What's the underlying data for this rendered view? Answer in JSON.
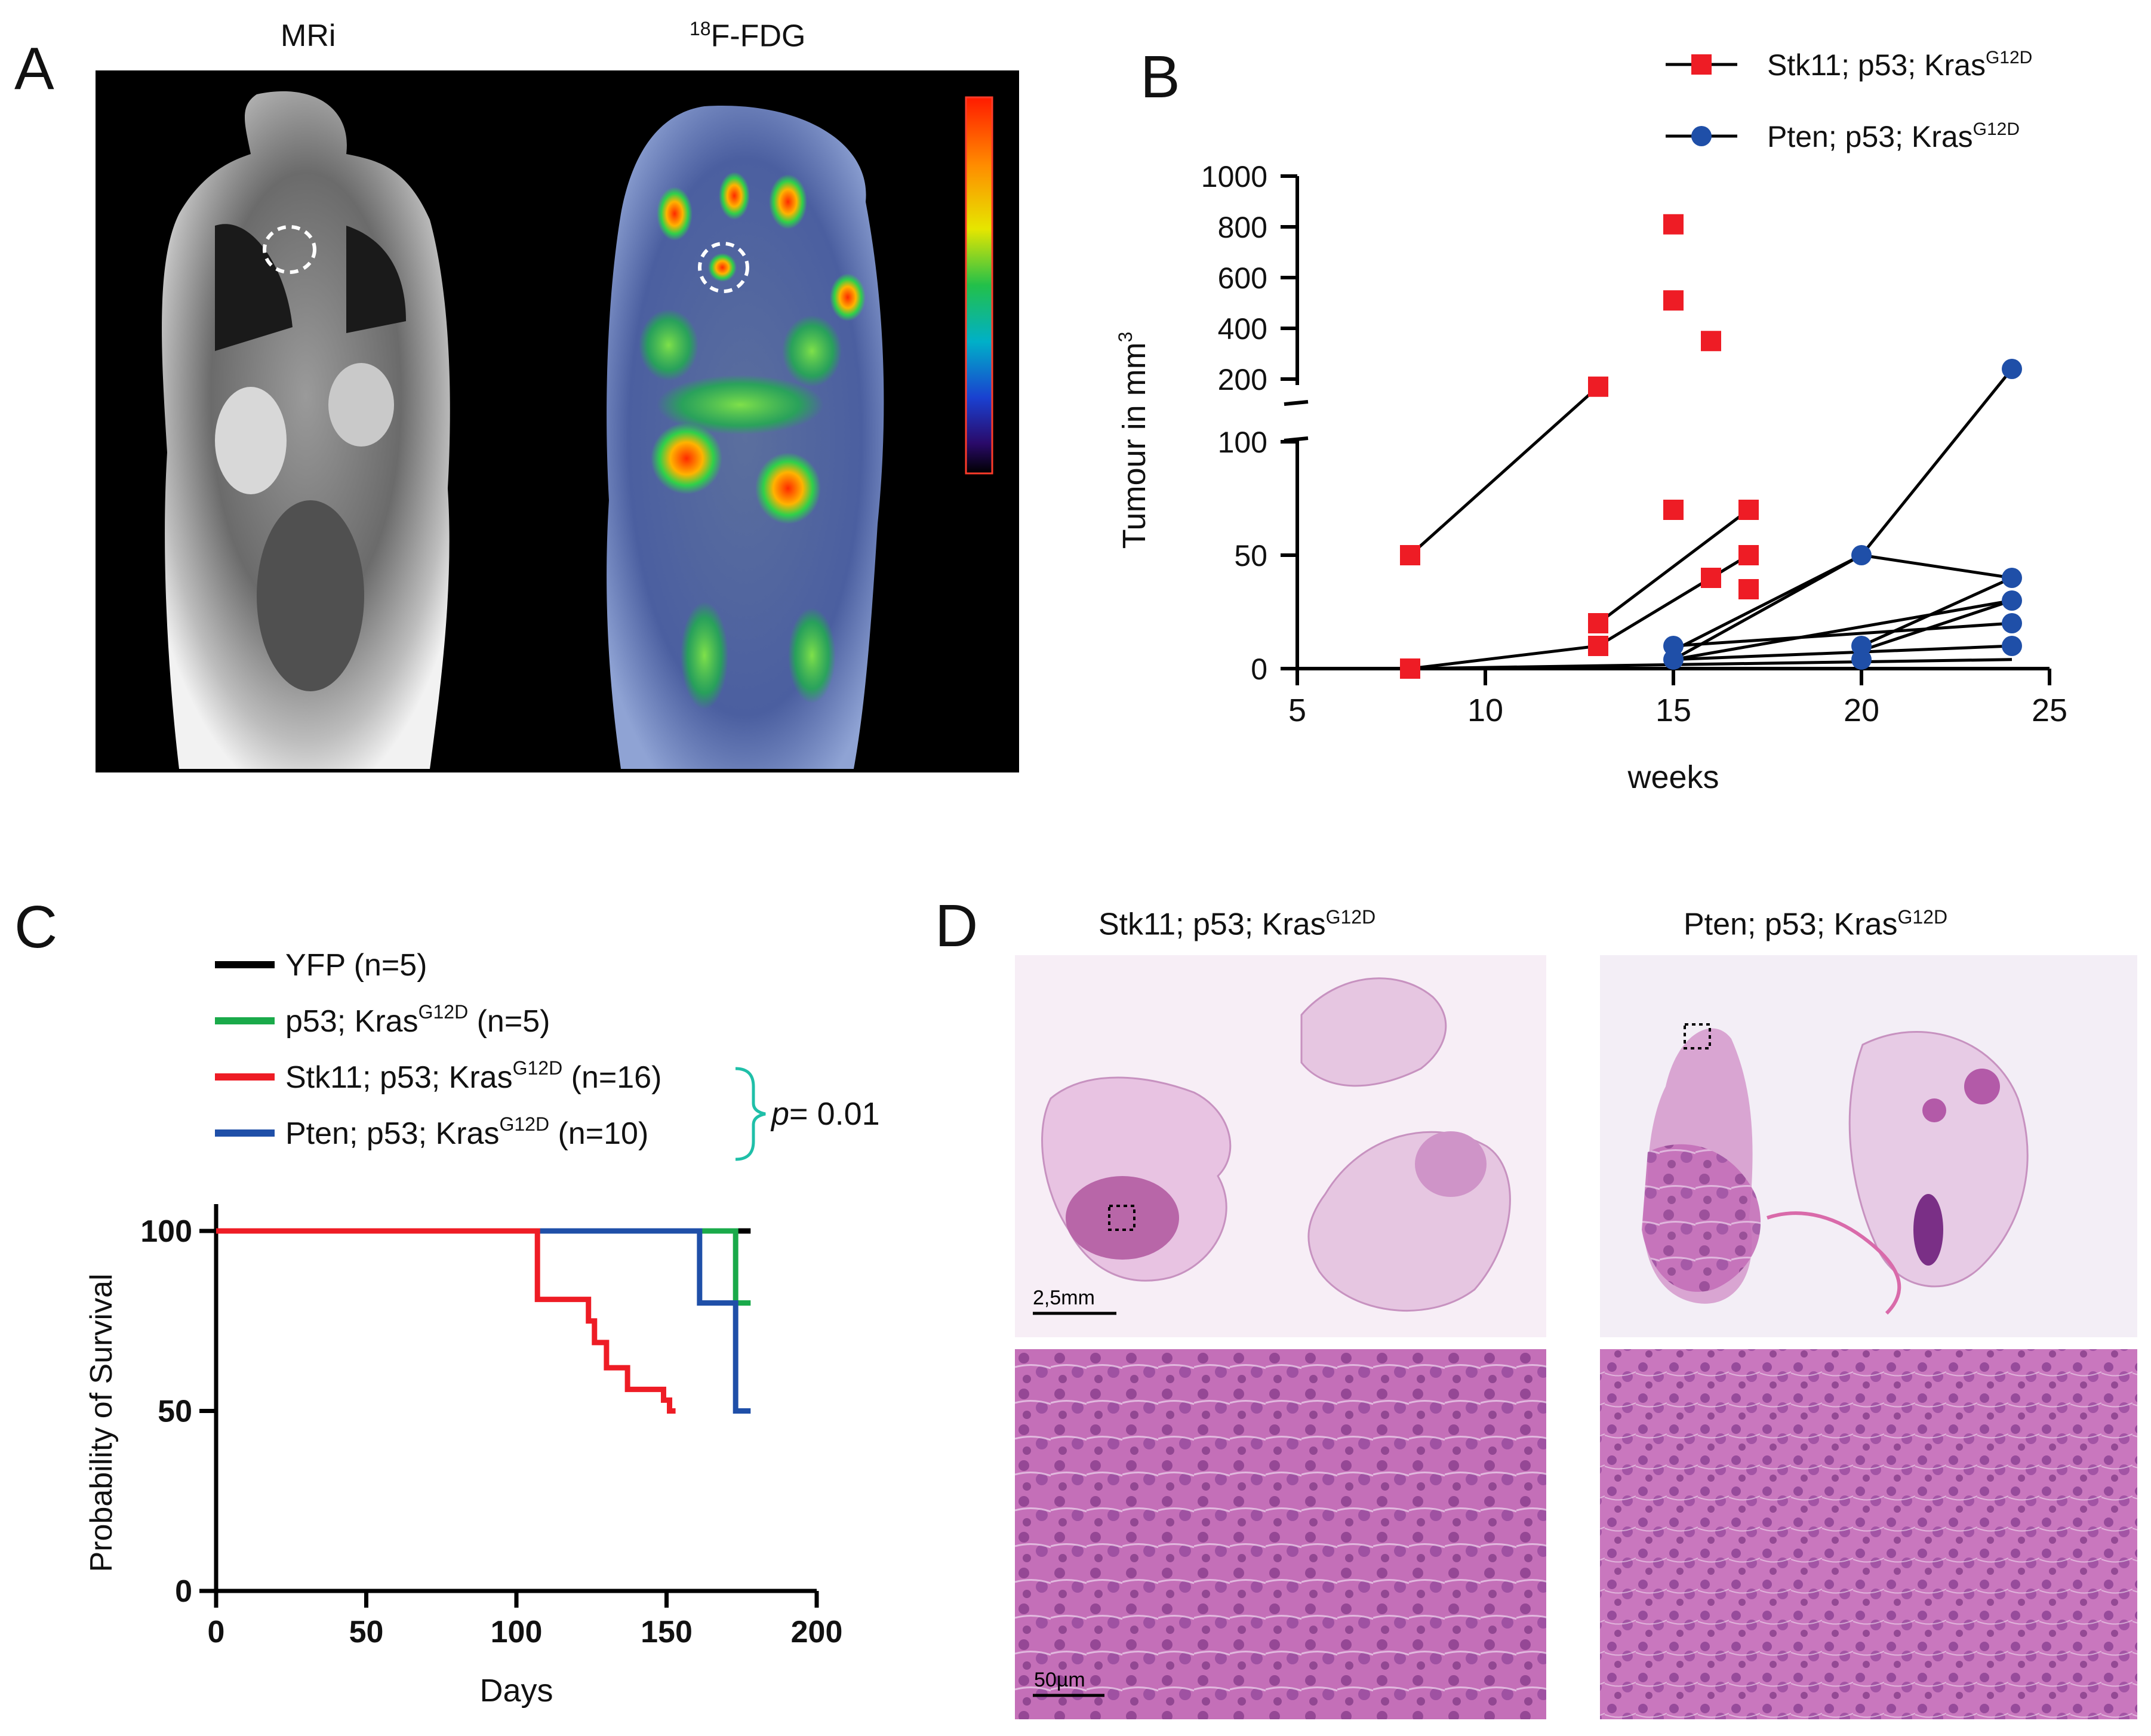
{
  "panel_a": {
    "letter": "A",
    "title_left": "MRi",
    "title_right_sup": "18",
    "title_right": "F-FDG"
  },
  "panel_b": {
    "letter": "B"
  },
  "panel_c": {
    "letter": "C"
  },
  "panel_d": {
    "letter": "D",
    "title_left_main": "Stk11; p53; Kras",
    "title_left_sup": "G12D",
    "title_right_main": "Pten; p53; Kras",
    "title_right_sup": "G12D",
    "scale_top": "2,5mm",
    "scale_bottom": "50µm"
  },
  "chart_data": [
    {
      "type": "scatter",
      "panel": "B",
      "xlabel": "weeks",
      "ylabel_main": "Tumour in mm",
      "ylabel_sup": "3",
      "xlim": [
        5,
        25
      ],
      "x_ticks": [
        5,
        10,
        15,
        20,
        25
      ],
      "y_axis_broken": true,
      "y_lower_range": [
        0,
        100
      ],
      "y_lower_ticks": [
        0,
        50,
        100
      ],
      "y_upper_range": [
        200,
        1000
      ],
      "y_upper_ticks": [
        200,
        400,
        600,
        800,
        1000
      ],
      "legend": [
        {
          "name_main": "Stk11; p53; Kras",
          "name_sup": "G12D",
          "marker": "square",
          "color": "#ee1c25"
        },
        {
          "name_main": "Pten; p53; Kras",
          "name_sup": "G12D",
          "marker": "circle",
          "color": "#1f4fa8"
        }
      ],
      "series": [
        {
          "name": "Stk11; p53; KrasG12D",
          "marker": "square",
          "color": "#ee1c25",
          "points": [
            [
              8,
              50
            ],
            [
              8,
              0
            ],
            [
              13,
              170
            ],
            [
              13,
              20
            ],
            [
              13,
              10
            ],
            [
              15,
              810
            ],
            [
              15,
              510
            ],
            [
              15,
              70
            ],
            [
              16,
              350
            ],
            [
              16,
              40
            ],
            [
              17,
              70
            ],
            [
              17,
              50
            ],
            [
              17,
              35
            ]
          ]
        },
        {
          "name": "Pten; p53; KrasG12D",
          "marker": "circle",
          "color": "#1f4fa8",
          "points": [
            [
              15,
              10
            ],
            [
              15,
              4
            ],
            [
              20,
              50
            ],
            [
              20,
              10
            ],
            [
              20,
              4
            ],
            [
              24,
              240
            ],
            [
              24,
              40
            ],
            [
              24,
              30
            ],
            [
              24,
              20
            ],
            [
              24,
              10
            ]
          ]
        }
      ],
      "lines": [
        [
          [
            8,
            50
          ],
          [
            13,
            170
          ]
        ],
        [
          [
            8,
            0
          ],
          [
            13,
            10
          ]
        ],
        [
          [
            13,
            20
          ],
          [
            17,
            70
          ]
        ],
        [
          [
            13,
            10
          ],
          [
            17,
            50
          ]
        ],
        [
          [
            8,
            0
          ],
          [
            24,
            4
          ]
        ],
        [
          [
            15,
            4
          ],
          [
            20,
            50
          ]
        ],
        [
          [
            15,
            8
          ],
          [
            20,
            50
          ]
        ],
        [
          [
            20,
            50
          ],
          [
            24,
            240
          ]
        ],
        [
          [
            20,
            50
          ],
          [
            24,
            40
          ]
        ],
        [
          [
            15,
            4
          ],
          [
            24,
            30
          ]
        ],
        [
          [
            15,
            10
          ],
          [
            24,
            20
          ]
        ],
        [
          [
            15,
            4
          ],
          [
            24,
            10
          ]
        ],
        [
          [
            20,
            8
          ],
          [
            24,
            30
          ]
        ],
        [
          [
            20,
            10
          ],
          [
            24,
            40
          ]
        ]
      ]
    },
    {
      "type": "line",
      "panel": "C",
      "xlabel": "Days",
      "ylabel": "Probability of Survival",
      "xlim": [
        0,
        200
      ],
      "ylim": [
        0,
        100
      ],
      "x_ticks": [
        0,
        50,
        100,
        150,
        200
      ],
      "y_ticks": [
        0,
        50,
        100
      ],
      "legend": [
        {
          "main": "YFP",
          "sup": "",
          "tail": " (n=5)",
          "color": "#000000"
        },
        {
          "main": "p53; Kras",
          "sup": "G12D",
          "tail": " (n=5)",
          "color": "#1aaa4a"
        },
        {
          "main": "Stk11; p53; Kras",
          "sup": "G12D",
          "tail": " (n=16)",
          "color": "#ee1c25"
        },
        {
          "main": "Pten; p53; Kras",
          "sup": "G12D",
          "tail": " (n=10)",
          "color": "#1f4fa8"
        }
      ],
      "pvalue_italic": "p",
      "pvalue_text": "= 0.01",
      "series": [
        {
          "name": "YFP",
          "color": "#000000",
          "steps": [
            [
              0,
              100
            ],
            [
              178,
              100
            ]
          ]
        },
        {
          "name": "p53; KrasG12D",
          "color": "#1aaa4a",
          "steps": [
            [
              0,
              100
            ],
            [
              173,
              100
            ],
            [
              173,
              80
            ],
            [
              178,
              80
            ]
          ]
        },
        {
          "name": "Stk11; p53; KrasG12D",
          "color": "#ee1c25",
          "steps": [
            [
              0,
              100
            ],
            [
              107,
              100
            ],
            [
              107,
              81
            ],
            [
              124,
              81
            ],
            [
              124,
              75
            ],
            [
              126,
              75
            ],
            [
              126,
              69
            ],
            [
              130,
              69
            ],
            [
              130,
              62
            ],
            [
              137,
              62
            ],
            [
              137,
              56
            ],
            [
              149,
              56
            ],
            [
              149,
              53
            ],
            [
              151,
              53
            ],
            [
              151,
              50
            ],
            [
              153,
              50
            ]
          ]
        },
        {
          "name": "Pten; p53; KrasG12D",
          "color": "#1f4fa8",
          "steps": [
            [
              0,
              100
            ],
            [
              161,
              100
            ],
            [
              161,
              80
            ],
            [
              173,
              80
            ],
            [
              173,
              50
            ],
            [
              178,
              50
            ]
          ]
        }
      ]
    }
  ]
}
